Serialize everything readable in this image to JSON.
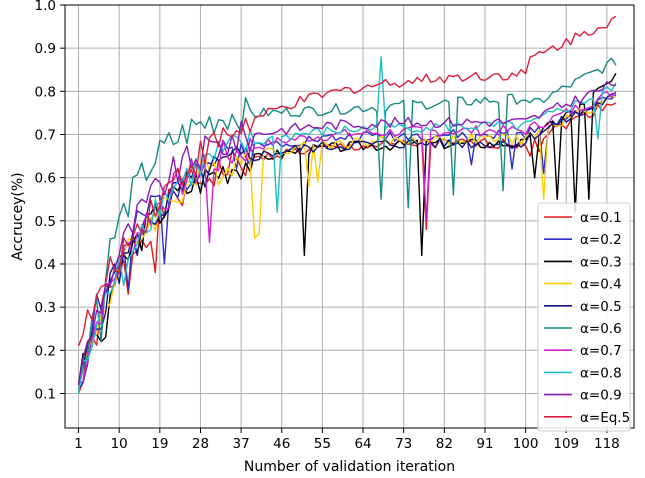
{
  "chart_data": {
    "type": "line",
    "xlabel": "Number of validation iteration",
    "ylabel": "Accrucey(%)",
    "xlim": [
      -2,
      124
    ],
    "ylim": [
      0.02,
      1.0
    ],
    "xticks": [
      1,
      10,
      19,
      28,
      37,
      46,
      55,
      64,
      73,
      82,
      91,
      100,
      109,
      118
    ],
    "yticks": [
      0.1,
      0.2,
      0.3,
      0.4,
      0.5,
      0.6,
      0.7,
      0.8,
      0.9,
      1.0
    ],
    "yticklabels": [
      "0.1",
      "0.2",
      "0.3",
      "0.4",
      "0.5",
      "0.6",
      "0.7",
      "0.8",
      "0.9",
      "1.0"
    ],
    "grid": true,
    "legend_position": "lower-right",
    "series": [
      {
        "name": "α=0.1",
        "color": "#e41a1c",
        "start": 0.1,
        "plateau": 0.68,
        "end": 0.78,
        "rate": 0.05,
        "offset": 0.0,
        "seed": 1,
        "spikes": [
          [
            7,
            0.35
          ],
          [
            12,
            0.33
          ],
          [
            18,
            0.38
          ],
          [
            78,
            0.48
          ],
          [
            101,
            0.65
          ],
          [
            103,
            0.66
          ]
        ]
      },
      {
        "name": "α=0.2",
        "color": "#2c2ccc",
        "start": 0.11,
        "plateau": 0.7,
        "end": 0.79,
        "rate": 0.055,
        "offset": 0.0,
        "seed": 2,
        "spikes": [
          [
            5,
            0.33
          ],
          [
            12,
            0.34
          ],
          [
            20,
            0.4
          ],
          [
            88,
            0.63
          ],
          [
            97,
            0.62
          ],
          [
            104,
            0.61
          ]
        ]
      },
      {
        "name": "α=0.3",
        "color": "#000000",
        "start": 0.12,
        "plateau": 0.68,
        "end": 0.83,
        "rate": 0.05,
        "offset": 0.0,
        "seed": 3,
        "spikes": [
          [
            6,
            0.22
          ],
          [
            7,
            0.23
          ],
          [
            51,
            0.42
          ],
          [
            77,
            0.42
          ],
          [
            102,
            0.6
          ],
          [
            107,
            0.55
          ],
          [
            111,
            0.52
          ],
          [
            114,
            0.55
          ]
        ]
      },
      {
        "name": "α=0.4",
        "color": "#ffcc00",
        "start": 0.11,
        "plateau": 0.69,
        "end": 0.79,
        "rate": 0.05,
        "offset": 0.0,
        "seed": 4,
        "spikes": [
          [
            40,
            0.46
          ],
          [
            41,
            0.47
          ],
          [
            52,
            0.58
          ],
          [
            54,
            0.59
          ],
          [
            104,
            0.55
          ]
        ]
      },
      {
        "name": "α=0.5",
        "color": "#15157a",
        "start": 0.12,
        "plateau": 0.69,
        "end": 0.79,
        "rate": 0.05,
        "offset": -0.01,
        "seed": 5,
        "spikes": [
          [
            9,
            0.4
          ],
          [
            14,
            0.42
          ]
        ]
      },
      {
        "name": "α=0.6",
        "color": "#178a80",
        "start": 0.11,
        "plateau": 0.76,
        "end": 0.87,
        "rate": 0.07,
        "offset": 0.03,
        "seed": 6,
        "spikes": [
          [
            6,
            0.22
          ],
          [
            68,
            0.55
          ],
          [
            74,
            0.53
          ],
          [
            84,
            0.56
          ],
          [
            95,
            0.57
          ]
        ]
      },
      {
        "name": "α=0.7",
        "color": "#d020d0",
        "start": 0.12,
        "plateau": 0.71,
        "end": 0.8,
        "rate": 0.05,
        "offset": 0.0,
        "seed": 7,
        "spikes": [
          [
            30,
            0.45
          ],
          [
            78,
            0.5
          ]
        ]
      },
      {
        "name": "α=0.8",
        "color": "#1fbfc8",
        "start": 0.1,
        "plateau": 0.72,
        "end": 0.81,
        "rate": 0.05,
        "offset": 0.0,
        "seed": 8,
        "spikes": [
          [
            68,
            0.88
          ],
          [
            45,
            0.52
          ],
          [
            11,
            0.35
          ],
          [
            116,
            0.69
          ]
        ]
      },
      {
        "name": "α=0.9",
        "color": "#8a1ab8",
        "start": 0.12,
        "plateau": 0.73,
        "end": 0.82,
        "rate": 0.055,
        "offset": 0.0,
        "seed": 9,
        "spikes": []
      },
      {
        "name": "α=Eq.5",
        "color": "#dc1e3c",
        "start": 0.21,
        "plateau": 0.87,
        "end": 0.97,
        "rate": 0.03,
        "offset": -0.02,
        "seed": 10,
        "spikes": []
      }
    ]
  }
}
